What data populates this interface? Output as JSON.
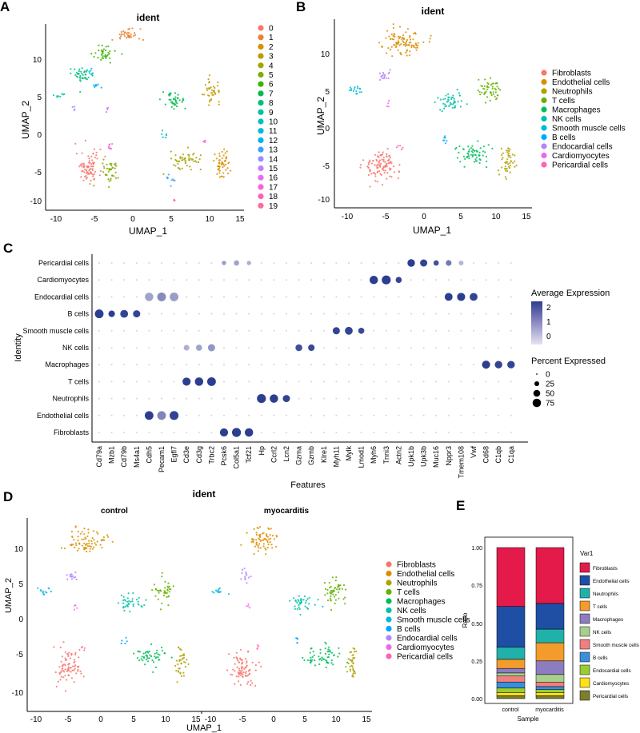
{
  "panel_labels": [
    "A",
    "B",
    "C",
    "D",
    "E"
  ],
  "palette": {
    "clusters20": [
      "#F8766D",
      "#EA8331",
      "#D89000",
      "#C09B00",
      "#A3A500",
      "#7CAE00",
      "#39B600",
      "#00BB4E",
      "#00BF7D",
      "#00C1A3",
      "#00BFC4",
      "#00BAE0",
      "#00B0F6",
      "#35A2FF",
      "#9590FF",
      "#C77CFF",
      "#E76BF3",
      "#FA62DB",
      "#FF62BC",
      "#FF6A98"
    ],
    "celltypes": [
      "#F8766D",
      "#DB8E00",
      "#AEA200",
      "#64B200",
      "#00BD5C",
      "#00C1A7",
      "#00BADE",
      "#00A6FF",
      "#B385FF",
      "#EF67EB",
      "#FF63B6"
    ],
    "dot_low": "#d6d4e8",
    "dot_high": "#2c3e8f",
    "bar_colors": [
      "#E31A4A",
      "#1F4FA5",
      "#20B2AA",
      "#F39C2B",
      "#8E7CC3",
      "#A8D08D",
      "#F08080",
      "#3A8FD8",
      "#9ACD32",
      "#FFE11A",
      "#7F7F2A"
    ]
  },
  "chart_data": [
    {
      "id": "A",
      "type": "scatter",
      "title": "ident",
      "xlabel": "UMAP_1",
      "ylabel": "UMAP_2",
      "xlim": [
        -11,
        15
      ],
      "ylim": [
        -11,
        14
      ],
      "xticks": [
        "-10",
        "-5",
        "0",
        "5",
        "10",
        "15"
      ],
      "yticks": [
        "10",
        "5",
        "0",
        "-5",
        "-10"
      ],
      "legend": [
        "0",
        "1",
        "2",
        "3",
        "4",
        "5",
        "6",
        "7",
        "8",
        "9",
        "10",
        "11",
        "12",
        "13",
        "14",
        "15",
        "16",
        "17",
        "18",
        "19"
      ],
      "clusters": [
        {
          "label": "0",
          "cx": -5.5,
          "cy": -5.5,
          "sx": 1.6,
          "sy": 2.0
        },
        {
          "label": "1",
          "cx": -0.5,
          "cy": 12.5,
          "sx": 1.8,
          "sy": 0.8
        },
        {
          "label": "2",
          "cx": 12.5,
          "cy": -5.0,
          "sx": 1.0,
          "sy": 2.0
        },
        {
          "label": "3",
          "cx": 11.0,
          "cy": 5.0,
          "sx": 1.0,
          "sy": 1.5
        },
        {
          "label": "4",
          "cx": 7.5,
          "cy": -4.5,
          "sx": 2.0,
          "sy": 1.0
        },
        {
          "label": "5",
          "cx": -2.5,
          "cy": -6.0,
          "sx": 1.0,
          "sy": 1.5
        },
        {
          "label": "6",
          "cx": -3.5,
          "cy": 10.0,
          "sx": 1.4,
          "sy": 1.0
        },
        {
          "label": "7",
          "cx": 6.0,
          "cy": 3.5,
          "sx": 1.5,
          "sy": 1.0
        },
        {
          "label": "8",
          "cx": -6.5,
          "cy": 7.0,
          "sx": 1.5,
          "sy": 1.0
        },
        {
          "label": "9",
          "cx": -9.5,
          "cy": 4.3,
          "sx": 0.6,
          "sy": 0.5
        },
        {
          "label": "10",
          "cx": 4.8,
          "cy": -1.0,
          "sx": 0.6,
          "sy": 0.4
        },
        {
          "label": "11",
          "cx": -5.2,
          "cy": 7.5,
          "sx": 0.6,
          "sy": 0.5
        },
        {
          "label": "12",
          "cx": -4.5,
          "cy": 5.5,
          "sx": 0.6,
          "sy": 0.5
        },
        {
          "label": "13",
          "cx": 5.5,
          "cy": -7.0,
          "sx": 0.6,
          "sy": 0.6
        },
        {
          "label": "14",
          "cx": -7.5,
          "cy": 2.5,
          "sx": 0.3,
          "sy": 0.4
        },
        {
          "label": "15",
          "cx": -3.0,
          "cy": 2.5,
          "sx": 0.3,
          "sy": 0.4
        },
        {
          "label": "16",
          "cx": -2.5,
          "cy": -3.0,
          "sx": 0.5,
          "sy": 0.3
        },
        {
          "label": "17",
          "cx": 10.0,
          "cy": -2.0,
          "sx": 0.3,
          "sy": 0.2
        },
        {
          "label": "18",
          "cx": -2.8,
          "cy": -2.5,
          "sx": 0.4,
          "sy": 0.3
        },
        {
          "label": "19",
          "cx": 6.0,
          "cy": -10.0,
          "sx": 0.1,
          "sy": 0.1
        }
      ]
    },
    {
      "id": "B",
      "type": "scatter",
      "title": "ident",
      "xlabel": "UMAP_1",
      "ylabel": "UMAP_2",
      "xlim": [
        -11,
        15
      ],
      "ylim": [
        -11,
        14
      ],
      "xticks": [
        "-10",
        "-5",
        "0",
        "5",
        "10",
        "15"
      ],
      "yticks": [
        "10",
        "5",
        "0",
        "-5",
        "-10"
      ],
      "legend": [
        "Fibroblasts",
        "Endothelial cells",
        "Neutrophils",
        "T cells",
        "Macrophages",
        "NK cells",
        "Smooth muscle cells",
        "B cells",
        "Endocardial cells",
        "Cardiomyocytes",
        "Pericardial cells"
      ],
      "clusters": [
        {
          "label": "Fibroblasts",
          "cx": -5.0,
          "cy": -5.5,
          "sx": 2.0,
          "sy": 2.0
        },
        {
          "label": "Endothelial cells",
          "cx": -2.0,
          "cy": 11.0,
          "sx": 2.5,
          "sy": 1.5
        },
        {
          "label": "Neutrophils",
          "cx": 12.0,
          "cy": -5.0,
          "sx": 0.9,
          "sy": 2.0
        },
        {
          "label": "T cells",
          "cx": 9.5,
          "cy": 4.5,
          "sx": 1.3,
          "sy": 1.5
        },
        {
          "label": "Macrophages",
          "cx": 7.5,
          "cy": -4.0,
          "sx": 2.0,
          "sy": 1.2
        },
        {
          "label": "NK cells",
          "cx": 4.5,
          "cy": 3.0,
          "sx": 1.8,
          "sy": 1.0
        },
        {
          "label": "Smooth muscle cells",
          "cx": -8.5,
          "cy": 4.5,
          "sx": 1.0,
          "sy": 0.6
        },
        {
          "label": "B cells",
          "cx": 3.5,
          "cy": -2.0,
          "sx": 0.5,
          "sy": 0.5
        },
        {
          "label": "Endocardial cells",
          "cx": -4.5,
          "cy": 6.5,
          "sx": 0.8,
          "sy": 0.8
        },
        {
          "label": "Cardiomyocytes",
          "cx": -4.0,
          "cy": 2.5,
          "sx": 0.3,
          "sy": 0.4
        },
        {
          "label": "Pericardial cells",
          "cx": -2.5,
          "cy": -3.0,
          "sx": 0.5,
          "sy": 0.4
        }
      ]
    },
    {
      "id": "C",
      "type": "dot",
      "xlabel": "Features",
      "ylabel": "Identity",
      "genes": [
        "Cd79a",
        "Mzb1",
        "Cd79b",
        "Ms4a1",
        "Cdh5",
        "Pecam1",
        "Egfl7",
        "Cd3e",
        "Cd3g",
        "Trbc2",
        "Pcsk6",
        "Col5a1",
        "Tcf21",
        "Hp",
        "Ccrl2",
        "Lcn2",
        "Gzma",
        "Gzmb",
        "Klre1",
        "Myh11",
        "Mylk",
        "Lmod1",
        "Myh6",
        "Tnni3",
        "Actn2",
        "Upk1b",
        "Upk3b",
        "Muc16",
        "Nppr3",
        "Tmem108",
        "Vwf",
        "Cd68",
        "C1qb",
        "C1qa"
      ],
      "cell_types": [
        "Pericardial cells",
        "Cardiomyocytes",
        "Endocardial cells",
        "B cells",
        "Smooth muscle cells",
        "NK cells",
        "Macrophages",
        "T cells",
        "Neutrophils",
        "Endothelial cells",
        "Fibroblasts"
      ],
      "legend_title_color": "Average Expression",
      "legend_color_ticks": [
        "2",
        "1",
        "0"
      ],
      "legend_title_size": "Percent Expressed",
      "legend_size_ticks": [
        "0",
        "25",
        "50",
        "75"
      ],
      "points": [
        {
          "row": "Pericardial cells",
          "gene": "Upk1b",
          "pct": 60,
          "avg": 2.5
        },
        {
          "row": "Pericardial cells",
          "gene": "Upk3b",
          "pct": 55,
          "avg": 2.4
        },
        {
          "row": "Pericardial cells",
          "gene": "Muc16",
          "pct": 30,
          "avg": 2.2
        },
        {
          "row": "Pericardial cells",
          "gene": "Nppr3",
          "pct": 35,
          "avg": 1.5
        },
        {
          "row": "Pericardial cells",
          "gene": "Tmem108",
          "pct": 25,
          "avg": 0.5
        },
        {
          "row": "Pericardial cells",
          "gene": "Col5a1",
          "pct": 30,
          "avg": 0.8
        },
        {
          "row": "Pericardial cells",
          "gene": "Pcsk6",
          "pct": 20,
          "avg": 0.9
        },
        {
          "row": "Pericardial cells",
          "gene": "Tcf21",
          "pct": 20,
          "avg": 0.6
        },
        {
          "row": "Cardiomyocytes",
          "gene": "Myh6",
          "pct": 75,
          "avg": 2.5
        },
        {
          "row": "Cardiomyocytes",
          "gene": "Tnni3",
          "pct": 85,
          "avg": 2.5
        },
        {
          "row": "Cardiomyocytes",
          "gene": "Actn2",
          "pct": 40,
          "avg": 2.4
        },
        {
          "row": "Endocardial cells",
          "gene": "Cdh5",
          "pct": 75,
          "avg": 0.8
        },
        {
          "row": "Endocardial cells",
          "gene": "Pecam1",
          "pct": 80,
          "avg": 1.2
        },
        {
          "row": "Endocardial cells",
          "gene": "Egfl7",
          "pct": 80,
          "avg": 0.9
        },
        {
          "row": "Endocardial cells",
          "gene": "Nppr3",
          "pct": 65,
          "avg": 2.5
        },
        {
          "row": "Endocardial cells",
          "gene": "Tmem108",
          "pct": 70,
          "avg": 2.5
        },
        {
          "row": "Endocardial cells",
          "gene": "Vwf",
          "pct": 65,
          "avg": 2.4
        },
        {
          "row": "B cells",
          "gene": "Cd79a",
          "pct": 80,
          "avg": 2.5
        },
        {
          "row": "B cells",
          "gene": "Mzb1",
          "pct": 45,
          "avg": 2.5
        },
        {
          "row": "B cells",
          "gene": "Cd79b",
          "pct": 65,
          "avg": 2.4
        },
        {
          "row": "B cells",
          "gene": "Ms4a1",
          "pct": 55,
          "avg": 2.4
        },
        {
          "row": "Smooth muscle cells",
          "gene": "Myh11",
          "pct": 55,
          "avg": 2.4
        },
        {
          "row": "Smooth muscle cells",
          "gene": "Mylk",
          "pct": 65,
          "avg": 2.4
        },
        {
          "row": "Smooth muscle cells",
          "gene": "Lmod1",
          "pct": 40,
          "avg": 2.3
        },
        {
          "row": "NK cells",
          "gene": "Cd3e",
          "pct": 35,
          "avg": 0.6
        },
        {
          "row": "NK cells",
          "gene": "Cd3g",
          "pct": 40,
          "avg": 0.8
        },
        {
          "row": "NK cells",
          "gene": "Trbc2",
          "pct": 55,
          "avg": 1.0
        },
        {
          "row": "NK cells",
          "gene": "Gzma",
          "pct": 50,
          "avg": 2.2
        },
        {
          "row": "NK cells",
          "gene": "Gzmb",
          "pct": 45,
          "avg": 2.3
        },
        {
          "row": "Macrophages",
          "gene": "Cd68",
          "pct": 70,
          "avg": 2.5
        },
        {
          "row": "Macrophages",
          "gene": "C1qb",
          "pct": 60,
          "avg": 2.4
        },
        {
          "row": "Macrophages",
          "gene": "C1qa",
          "pct": 60,
          "avg": 2.4
        },
        {
          "row": "T cells",
          "gene": "Cd3e",
          "pct": 70,
          "avg": 2.5
        },
        {
          "row": "T cells",
          "gene": "Cd3g",
          "pct": 75,
          "avg": 2.5
        },
        {
          "row": "T cells",
          "gene": "Trbc2",
          "pct": 80,
          "avg": 2.5
        },
        {
          "row": "Neutrophils",
          "gene": "Hp",
          "pct": 85,
          "avg": 2.5
        },
        {
          "row": "Neutrophils",
          "gene": "Ccrl2",
          "pct": 75,
          "avg": 2.5
        },
        {
          "row": "Neutrophils",
          "gene": "Lcn2",
          "pct": 55,
          "avg": 2.4
        },
        {
          "row": "Endothelial cells",
          "gene": "Cdh5",
          "pct": 80,
          "avg": 2.5
        },
        {
          "row": "Endothelial cells",
          "gene": "Pecam1",
          "pct": 80,
          "avg": 1.3
        },
        {
          "row": "Endothelial cells",
          "gene": "Egfl7",
          "pct": 85,
          "avg": 2.4
        },
        {
          "row": "Fibroblasts",
          "gene": "Pcsk6",
          "pct": 70,
          "avg": 2.5
        },
        {
          "row": "Fibroblasts",
          "gene": "Col5a1",
          "pct": 85,
          "avg": 2.5
        },
        {
          "row": "Fibroblasts",
          "gene": "Tcf21",
          "pct": 75,
          "avg": 2.5
        }
      ]
    },
    {
      "id": "D",
      "type": "scatter",
      "title": "ident",
      "facets": [
        "control",
        "myocarditis"
      ],
      "xlabel": "UMAP_1",
      "ylabel": "UMAP_2",
      "xlim": [
        -11,
        15
      ],
      "ylim": [
        -11,
        14
      ],
      "xticks": [
        "-10",
        "-5",
        "0",
        "5",
        "10",
        "15"
      ],
      "yticks": [
        "10",
        "5",
        "0",
        "-5",
        "-10"
      ],
      "legend": [
        "Fibroblasts",
        "Endothelial cells",
        "Neutrophils",
        "T cells",
        "Macrophages",
        "NK cells",
        "Smooth muscle cells",
        "B cells",
        "Endocardial cells",
        "Cardiomyocytes",
        "Pericardial cells"
      ]
    },
    {
      "id": "E",
      "type": "bar",
      "stacked": true,
      "xlabel": "Sample",
      "ylabel": "Ratio",
      "categories": [
        "control",
        "myocarditis"
      ],
      "yticks": [
        "1.00",
        "0.75",
        "0.50",
        "0.25",
        "0.00"
      ],
      "legend_title": "Var1",
      "series": [
        {
          "name": "Fibroblasts",
          "values": [
            0.39,
            0.37
          ]
        },
        {
          "name": "Endothelial cells",
          "values": [
            0.27,
            0.17
          ]
        },
        {
          "name": "Neutrophils",
          "values": [
            0.08,
            0.09
          ]
        },
        {
          "name": "T cells",
          "values": [
            0.06,
            0.12
          ]
        },
        {
          "name": "Macrophages",
          "values": [
            0.03,
            0.09
          ]
        },
        {
          "name": "NK cells",
          "values": [
            0.02,
            0.05
          ]
        },
        {
          "name": "Smooth muscle cells",
          "values": [
            0.04,
            0.03
          ]
        },
        {
          "name": "B cells",
          "values": [
            0.04,
            0.02
          ]
        },
        {
          "name": "Endocardial cells",
          "values": [
            0.03,
            0.02
          ]
        },
        {
          "name": "Cardiomyocytes",
          "values": [
            0.02,
            0.02
          ]
        },
        {
          "name": "Pericardial cells",
          "values": [
            0.02,
            0.02
          ]
        }
      ]
    }
  ]
}
